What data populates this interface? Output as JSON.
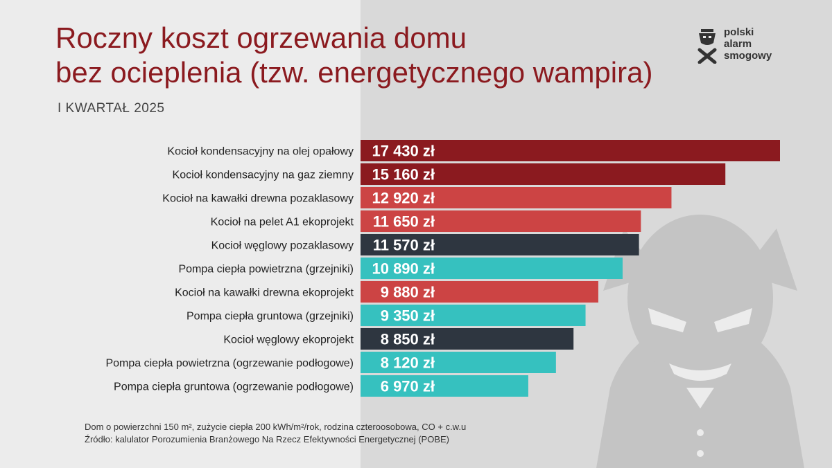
{
  "header": {
    "title_line1": "Roczny koszt ogrzewania domu",
    "title_line2": "bez ocieplenia (tzw. energetycznego wampira)",
    "subtitle": "I KWARTAŁ 2025"
  },
  "brand": {
    "line1": "polski",
    "line2": "alarm",
    "line3": "smogowy"
  },
  "colors": {
    "title": "#8b1a1f",
    "oil_gas": "#8b1a1f",
    "wood_pellet": "#cc4444",
    "coal": "#2e3640",
    "heat_pump": "#36c1bf",
    "background": "#ececec"
  },
  "chart_data": {
    "type": "bar",
    "orientation": "horizontal",
    "unit": "zł",
    "categories": [
      "Kocioł kondensacyjny na olej opałowy",
      "Kocioł kondensacyjny na gaz ziemny",
      "Kocioł na kawałki drewna pozaklasowy",
      "Kocioł na pelet A1 ekoprojekt",
      "Kocioł węglowy pozaklasowy",
      "Pompa ciepła powietrzna (grzejniki)",
      "Kocioł na kawałki drewna ekoprojekt",
      "Pompa ciepła gruntowa (grzejniki)",
      "Kocioł węglowy ekoprojekt",
      "Pompa ciepła powietrzna (ogrzewanie podłogowe)",
      "Pompa ciepła gruntowa (ogrzewanie podłogowe)"
    ],
    "values": [
      17430,
      15160,
      12920,
      11650,
      11570,
      10890,
      9880,
      9350,
      8850,
      8120,
      6970
    ],
    "value_labels": [
      "17 430 zł",
      "15 160 zł",
      "12 920 zł",
      "11 650 zł",
      "11 570 zł",
      "10 890 zł",
      "9 880 zł",
      "9 350 zł",
      "8 850 zł",
      "8 120 zł",
      "6 970 zł"
    ],
    "bar_colors": [
      "#8b1a1f",
      "#8b1a1f",
      "#cc4444",
      "#cc4444",
      "#2e3640",
      "#36c1bf",
      "#cc4444",
      "#36c1bf",
      "#2e3640",
      "#36c1bf",
      "#36c1bf"
    ],
    "xlim": [
      0,
      17430
    ],
    "grid": false,
    "legend": "none"
  },
  "footer": {
    "note": "Dom o powierzchni 150 m², zużycie ciepła 200 kWh/m²/rok, rodzina czteroosobowa, CO + c.w.u",
    "source": "Źródło: kalulator Porozumienia Branżowego Na Rzecz Efektywności Energetycznej (POBE)"
  }
}
